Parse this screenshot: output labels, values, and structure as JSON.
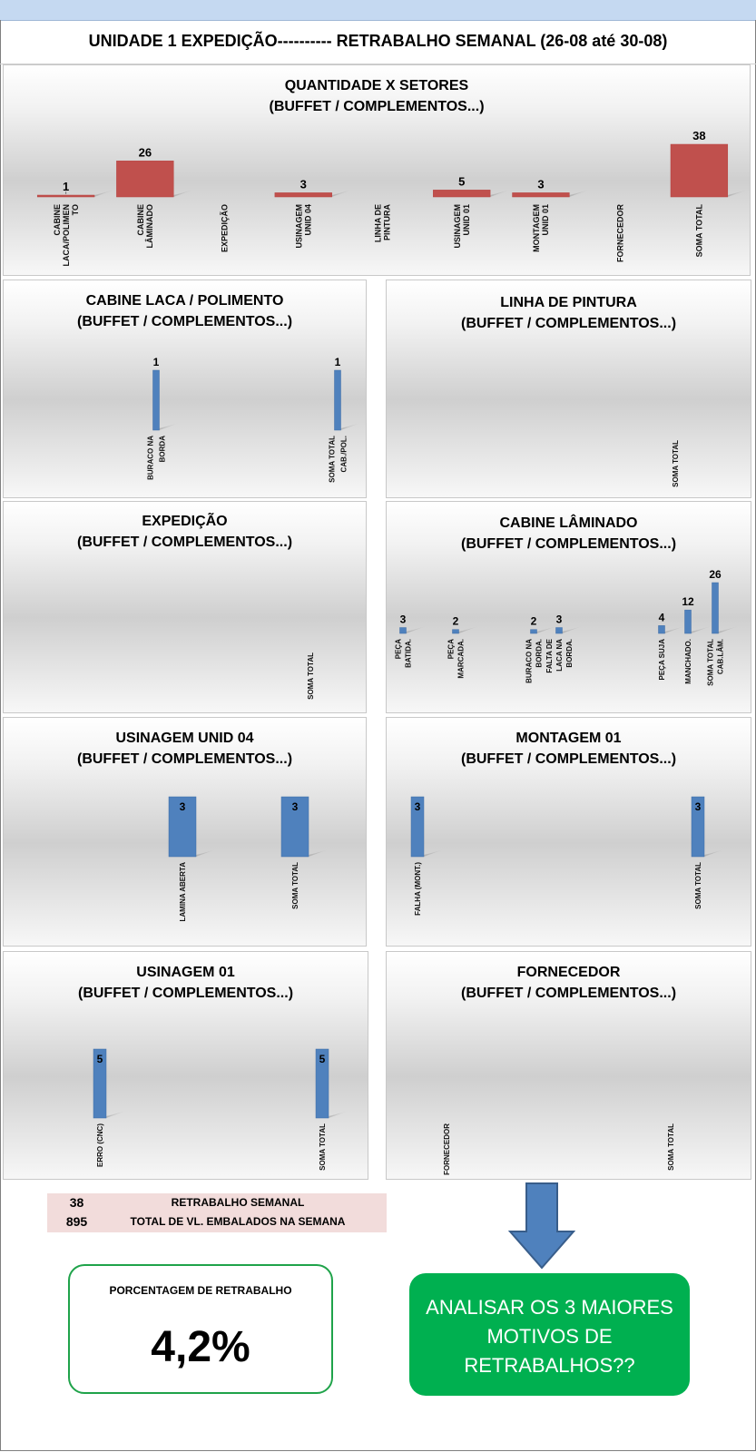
{
  "header": {
    "title": "UNIDADE 1 EXPEDIÇÃO----------   RETRABALHO SEMANAL (26-08 até 30-08)"
  },
  "colors": {
    "summary_bar": "#c0504d",
    "detail_bar": "#4f81bd",
    "action_green": "#00b050",
    "pct_border": "#1fa34a",
    "summary_bg": "#f2dcdb"
  },
  "panels": [
    {
      "key": "qtd",
      "title": "QUANTIDADE X SETORES",
      "subtitle": "(BUFFET / COMPLEMENTOS...)"
    },
    {
      "key": "cabine_laca",
      "title": "CABINE LACA / POLIMENTO",
      "subtitle": "(BUFFET / COMPLEMENTOS...)"
    },
    {
      "key": "linha_pintura",
      "title": "LINHA DE PINTURA",
      "subtitle": "(BUFFET / COMPLEMENTOS...)"
    },
    {
      "key": "expedicao",
      "title": "EXPEDIÇÃO",
      "subtitle": "(BUFFET / COMPLEMENTOS...)"
    },
    {
      "key": "cabine_lam",
      "title": "CABINE LÂMINADO",
      "subtitle": "(BUFFET / COMPLEMENTOS...)"
    },
    {
      "key": "usinagem04",
      "title": "USINAGEM UNID 04",
      "subtitle": "(BUFFET / COMPLEMENTOS...)"
    },
    {
      "key": "montagem01",
      "title": "MONTAGEM 01",
      "subtitle": "(BUFFET / COMPLEMENTOS...)"
    },
    {
      "key": "usinagem01",
      "title": "USINAGEM 01",
      "subtitle": "(BUFFET / COMPLEMENTOS...)"
    },
    {
      "key": "fornecedor",
      "title": "FORNECEDOR",
      "subtitle": "(BUFFET / COMPLEMENTOS...)"
    }
  ],
  "chart_data": [
    {
      "type": "bar",
      "title": "QUANTIDADE X SETORES",
      "subtitle": "(BUFFET / COMPLEMENTOS...)",
      "color": "#c0504d",
      "categories": [
        "CABINE LACA/POLIMENTO",
        "CABINE LÂMINADO",
        "EXPEDIÇÃO",
        "USINAGEM UNID 04",
        "LINHA DE PINTURA",
        "USINAGEM UNID 01",
        "MONTAGEM UNID 01",
        "FORNECEDOR",
        "SOMA TOTAL"
      ],
      "values": [
        1,
        26,
        null,
        3,
        null,
        5,
        3,
        null,
        38
      ],
      "ylim": [
        0,
        38
      ]
    },
    {
      "type": "bar",
      "title": "CABINE LACA / POLIMENTO",
      "subtitle": "(BUFFET / COMPLEMENTOS...)",
      "color": "#4f81bd",
      "categories": [
        "BURACO NA BORDA",
        "SOMA TOTAL CAB./POL."
      ],
      "values": [
        1,
        1
      ],
      "ylim": [
        0,
        1
      ]
    },
    {
      "type": "bar",
      "title": "LINHA DE PINTURA",
      "subtitle": "(BUFFET / COMPLEMENTOS...)",
      "color": "#4f81bd",
      "categories": [
        "",
        "SOMA TOTAL"
      ],
      "values": [
        null,
        null
      ],
      "ylim": [
        0,
        1
      ]
    },
    {
      "type": "bar",
      "title": "EXPEDIÇÃO",
      "subtitle": "(BUFFET / COMPLEMENTOS...)",
      "color": "#4f81bd",
      "categories": [
        "",
        "SOMA TOTAL"
      ],
      "values": [
        null,
        null
      ],
      "ylim": [
        0,
        1
      ]
    },
    {
      "type": "bar",
      "title": "CABINE LÂMINADO",
      "subtitle": "(BUFFET / COMPLEMENTOS...)",
      "color": "#4f81bd",
      "categories": [
        "PEÇA BATIDA.",
        "PEÇA MARCADA.",
        "",
        "BURACO NA BORDA.",
        "FALTA DE LACA NA BORDA.",
        "",
        "",
        "PEÇA SUJA",
        "MANCHADO.",
        "SOMA TOTAL CAB.LÂM."
      ],
      "values": [
        3,
        2,
        null,
        2,
        3,
        null,
        null,
        4,
        12,
        26
      ],
      "ylim": [
        0,
        26
      ]
    },
    {
      "type": "bar",
      "title": "USINAGEM UNID 04",
      "subtitle": "(BUFFET / COMPLEMENTOS...)",
      "color": "#4f81bd",
      "categories": [
        "",
        "LAMINA ABERTA",
        "SOMA TOTAL"
      ],
      "values": [
        null,
        3,
        3
      ],
      "ylim": [
        0,
        3
      ]
    },
    {
      "type": "bar",
      "title": "MONTAGEM 01",
      "subtitle": "(BUFFET / COMPLEMENTOS...)",
      "color": "#4f81bd",
      "categories": [
        "FALHA (MONT.)",
        "SOMA TOTAL"
      ],
      "values": [
        3,
        3
      ],
      "ylim": [
        0,
        3
      ]
    },
    {
      "type": "bar",
      "title": "USINAGEM 01",
      "subtitle": "(BUFFET / COMPLEMENTOS...)",
      "color": "#4f81bd",
      "categories": [
        "ERRO (CNC)",
        "SOMA TOTAL"
      ],
      "values": [
        5,
        5
      ],
      "ylim": [
        0,
        5
      ]
    },
    {
      "type": "bar",
      "title": "FORNECEDOR",
      "subtitle": "(BUFFET / COMPLEMENTOS...)",
      "color": "#4f81bd",
      "categories": [
        "FORNECEDOR",
        "SOMA TOTAL"
      ],
      "values": [
        null,
        null
      ],
      "ylim": [
        0,
        1
      ]
    }
  ],
  "summary": {
    "rows": [
      {
        "value": "38",
        "label": "RETRABALHO SEMANAL"
      },
      {
        "value": "895",
        "label": "TOTAL DE VL. EMBALADOS NA SEMANA"
      }
    ]
  },
  "percentage": {
    "label": "PORCENTAGEM DE RETRABALHO",
    "value": "4,2%"
  },
  "action": {
    "text": "ANALISAR OS 3 MAIORES MOTIVOS DE RETRABALHOS??"
  }
}
